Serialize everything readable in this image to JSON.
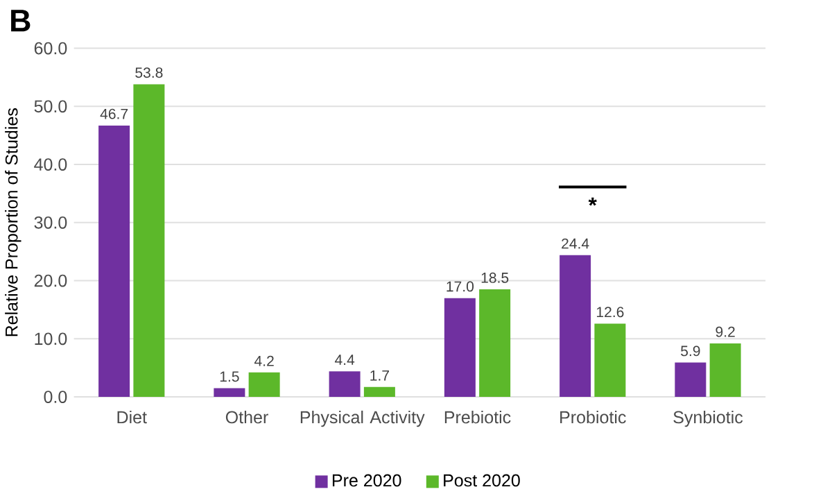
{
  "chart_data": {
    "type": "bar",
    "ylabel": "Relative Proportion of Studies",
    "categories": [
      "Diet",
      "Other",
      "Physical Activity",
      "Prebiotic",
      "Probiotic",
      "Synbiotic"
    ],
    "series": [
      {
        "name": "Pre 2020",
        "color": "#7030a0",
        "values": [
          46.7,
          1.5,
          4.4,
          17.0,
          24.4,
          5.9
        ],
        "value_labels": [
          "46.7",
          "1.5",
          "4.4",
          "17.0",
          "24.4",
          "5.9"
        ]
      },
      {
        "name": "Post 2020",
        "color": "#5cb82a",
        "values": [
          53.8,
          4.2,
          1.7,
          18.5,
          12.6,
          9.2
        ],
        "value_labels": [
          "53.8",
          "4.2",
          "1.7",
          "18.5",
          "12.6",
          "9.2"
        ]
      }
    ],
    "ylim": [
      0,
      60
    ],
    "yticks": [
      {
        "value": 0,
        "label": "0.0"
      },
      {
        "value": 10,
        "label": "10.0"
      },
      {
        "value": 20,
        "label": "20.0"
      },
      {
        "value": 30,
        "label": "30.0"
      },
      {
        "value": 40,
        "label": "40.0"
      },
      {
        "value": 50,
        "label": "50.0"
      },
      {
        "value": 60,
        "label": "60.0"
      }
    ],
    "grid": "y",
    "legend": "bottom",
    "annotations": [
      "B",
      "*"
    ]
  }
}
